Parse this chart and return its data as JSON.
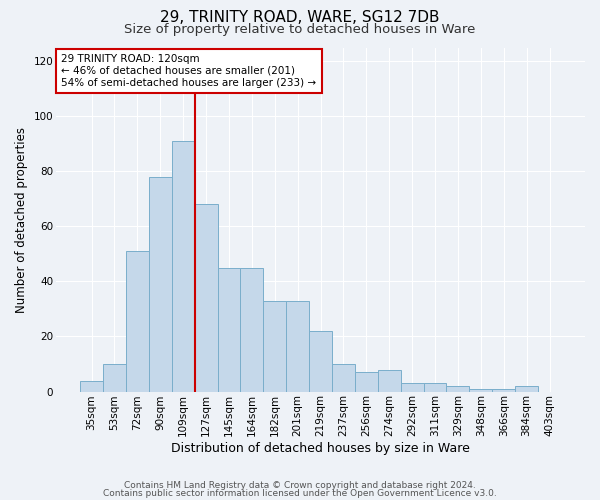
{
  "title1": "29, TRINITY ROAD, WARE, SG12 7DB",
  "title2": "Size of property relative to detached houses in Ware",
  "xlabel": "Distribution of detached houses by size in Ware",
  "ylabel": "Number of detached properties",
  "categories": [
    "35sqm",
    "53sqm",
    "72sqm",
    "90sqm",
    "109sqm",
    "127sqm",
    "145sqm",
    "164sqm",
    "182sqm",
    "201sqm",
    "219sqm",
    "237sqm",
    "256sqm",
    "274sqm",
    "292sqm",
    "311sqm",
    "329sqm",
    "348sqm",
    "366sqm",
    "384sqm",
    "403sqm"
  ],
  "values": [
    4,
    10,
    51,
    78,
    91,
    68,
    45,
    45,
    33,
    33,
    22,
    10,
    7,
    8,
    3,
    3,
    2,
    1,
    1,
    2,
    0
  ],
  "bar_color": "#c5d8ea",
  "bar_edge_color": "#7aaecb",
  "annotation_line_color": "#cc0000",
  "annotation_box_color": "#ffffff",
  "annotation_box_edge": "#cc0000",
  "annotation_text_line1": "29 TRINITY ROAD: 120sqm",
  "annotation_text_line2": "← 46% of detached houses are smaller (201)",
  "annotation_text_line3": "54% of semi-detached houses are larger (233) →",
  "ylim": [
    0,
    125
  ],
  "yticks": [
    0,
    20,
    40,
    60,
    80,
    100,
    120
  ],
  "footer1": "Contains HM Land Registry data © Crown copyright and database right 2024.",
  "footer2": "Contains public sector information licensed under the Open Government Licence v3.0.",
  "background_color": "#eef2f7",
  "plot_bg_color": "#eef2f7",
  "title1_fontsize": 11,
  "title2_fontsize": 9.5,
  "xlabel_fontsize": 9,
  "ylabel_fontsize": 8.5,
  "tick_fontsize": 7.5,
  "footer_fontsize": 6.5,
  "annotation_fontsize": 7.5
}
